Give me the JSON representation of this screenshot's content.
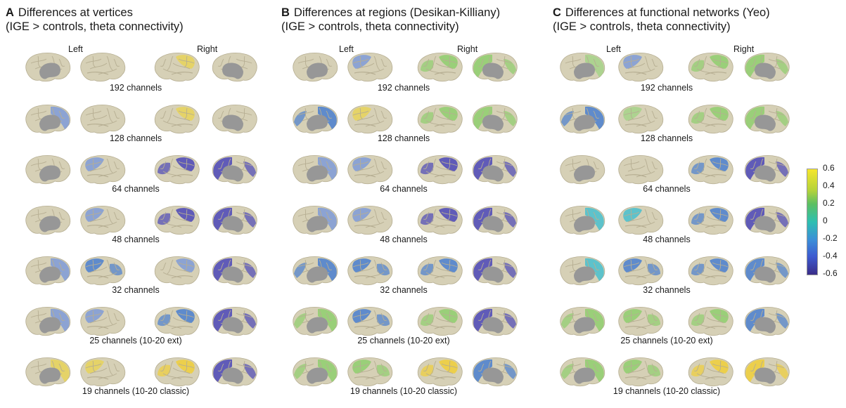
{
  "panels": [
    {
      "letter": "A",
      "title": "Differences at vertices",
      "subtitle": "(IGE > controls, theta connectivity)",
      "left": "Left",
      "right": "Right"
    },
    {
      "letter": "B",
      "title": "Differences at regions (Desikan-Killiany)",
      "subtitle": "(IGE > controls, theta connectivity)",
      "left": "Left",
      "right": "Right"
    },
    {
      "letter": "C",
      "title": "Differences at functional networks (Yeo)",
      "subtitle": "(IGE > controls, theta connectivity)",
      "left": "Left",
      "right": "Right"
    }
  ],
  "rows": [
    "192 channels",
    "128 channels",
    "64 channels",
    "48 channels",
    "32 channels",
    "25 channels (10-20 ext)",
    "19 channels (10-20 classic)"
  ],
  "colorbar": {
    "ticks": [
      "0.6",
      "0.4",
      "0.2",
      "0",
      "-0.2",
      "-0.4",
      "-0.6"
    ],
    "colors": [
      "#f5e62c",
      "#b5d33a",
      "#5bbf62",
      "#2dbfb1",
      "#3b8ed8",
      "#3d5ad0",
      "#3a2d88"
    ]
  },
  "colors": {
    "cortex": "#d6d0b6",
    "sulcus": "#b6ae92",
    "medial_wall": "#979797"
  },
  "patches": {
    "A": [
      [
        "n",
        "n",
        "s",
        "n"
      ],
      [
        "b",
        "n",
        "s",
        "n"
      ],
      [
        "n",
        "b",
        "D",
        "D"
      ],
      [
        "n",
        "b",
        "D",
        "D"
      ],
      [
        "b",
        "B",
        "b",
        "D"
      ],
      [
        "b",
        "b",
        "B",
        "D"
      ],
      [
        "s",
        "s",
        "Y",
        "D"
      ]
    ],
    "B": [
      [
        "n",
        "b",
        "G",
        "G"
      ],
      [
        "B",
        "s",
        "G",
        "G"
      ],
      [
        "b",
        "b",
        "D",
        "D"
      ],
      [
        "b",
        "b",
        "D",
        "D"
      ],
      [
        "B",
        "B",
        "B",
        "D"
      ],
      [
        "G",
        "B",
        "G",
        "D"
      ],
      [
        "G",
        "G",
        "Y",
        "B"
      ]
    ],
    "C": [
      [
        "g",
        "b",
        "G",
        "G"
      ],
      [
        "B",
        "g",
        "G",
        "G"
      ],
      [
        "n",
        "n",
        "B",
        "D"
      ],
      [
        "c",
        "c",
        "B",
        "D"
      ],
      [
        "c",
        "B",
        "B",
        "B"
      ],
      [
        "G",
        "G",
        "G",
        "B"
      ],
      [
        "G",
        "G",
        "Y",
        "Y"
      ]
    ]
  }
}
